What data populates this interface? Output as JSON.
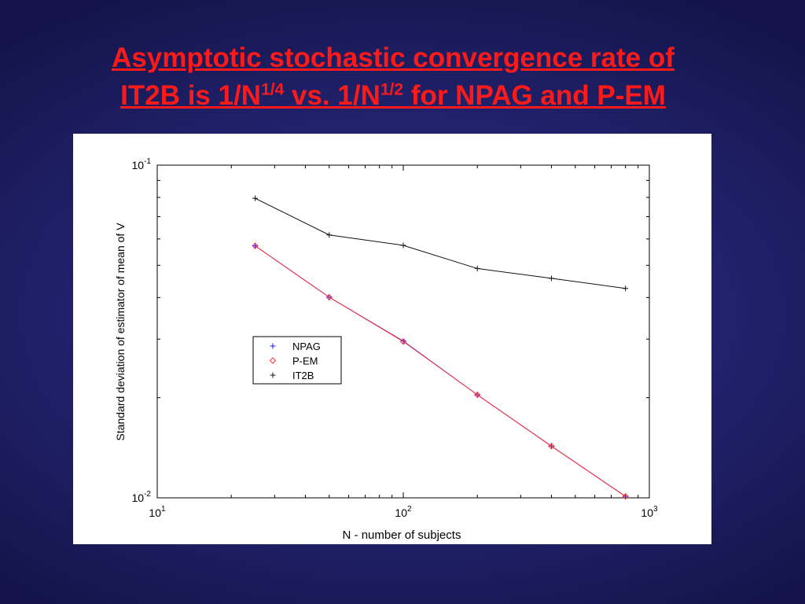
{
  "slide": {
    "title_line1": "Asymptotic stochastic convergence rate of",
    "title_line2_a": "IT2B is 1/N",
    "title_line2_sup1": "1/4",
    "title_line2_b": " vs. 1/N",
    "title_line2_sup2": "1/2",
    "title_line2_c": " for NPAG and P-EM",
    "title_color": "#ff1a1a",
    "background_color": "#242473"
  },
  "chart_data": {
    "type": "line",
    "xscale": "log",
    "yscale": "log",
    "xlim": [
      10,
      1000
    ],
    "ylim": [
      0.01,
      0.1
    ],
    "xlabel": "N - number of subjects",
    "ylabel": "Standard deviation of estimator of mean of V",
    "xticks": [
      {
        "value": 10,
        "base": "10",
        "exp": "1"
      },
      {
        "value": 100,
        "base": "10",
        "exp": "2"
      },
      {
        "value": 1000,
        "base": "10",
        "exp": "3"
      }
    ],
    "yticks": [
      {
        "value": 0.01,
        "base": "10",
        "exp": "-2"
      },
      {
        "value": 0.1,
        "base": "10",
        "exp": "-1"
      }
    ],
    "grid": false,
    "legend_position": "center-left",
    "series": [
      {
        "name": "NPAG",
        "marker": "+",
        "color": "#1a1aff",
        "x": [
          25,
          50,
          100,
          200,
          400,
          800
        ],
        "y": [
          0.0572,
          0.0401,
          0.0296,
          0.0204,
          0.0143,
          0.0101
        ]
      },
      {
        "name": "P-EM",
        "marker": "diamond",
        "color": "#ff3333",
        "x": [
          25,
          50,
          100,
          200,
          400,
          800
        ],
        "y": [
          0.0572,
          0.0401,
          0.0295,
          0.0204,
          0.0143,
          0.0101
        ]
      },
      {
        "name": "IT2B",
        "marker": "+",
        "color": "#111111",
        "x": [
          25,
          50,
          100,
          200,
          400,
          800
        ],
        "y": [
          0.0795,
          0.0617,
          0.0574,
          0.0489,
          0.0457,
          0.0426
        ]
      }
    ]
  }
}
